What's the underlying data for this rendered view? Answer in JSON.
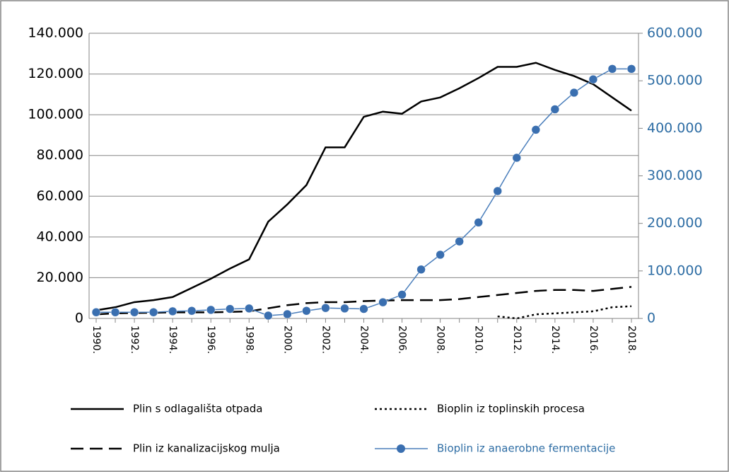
{
  "chart_data": {
    "type": "line",
    "categories": [
      "1990.",
      null,
      "1992.",
      null,
      "1994.",
      null,
      "1996.",
      null,
      "1998.",
      null,
      "2000.",
      null,
      "2002.",
      null,
      "2004.",
      null,
      "2006.",
      null,
      "2008.",
      null,
      "2010.",
      null,
      "2012.",
      null,
      "2014.",
      null,
      "2016.",
      null,
      "2018."
    ],
    "ylim": [
      0,
      140000
    ],
    "yticks": [
      0,
      {
        "value": 20000,
        "label": "20.000"
      },
      {
        "value": 40000,
        "label": "40.000"
      },
      {
        "value": 60000,
        "label": "60.000"
      },
      {
        "value": 80000,
        "label": "80.000"
      },
      {
        "value": 100000,
        "label": "100.000"
      },
      {
        "value": 120000,
        "label": "120.000"
      },
      {
        "value": 140000,
        "label": "140.000"
      }
    ],
    "y2lim": [
      0,
      600000
    ],
    "y2ticks": [
      0,
      {
        "value": 100000,
        "label": "100.000"
      },
      {
        "value": 200000,
        "label": "200.000"
      },
      {
        "value": 300000,
        "label": "300.000"
      },
      {
        "value": 400000,
        "label": "400.000"
      },
      {
        "value": 500000,
        "label": "500.000"
      },
      {
        "value": 600000,
        "label": "600.000"
      }
    ],
    "grid": true,
    "legend": "bottom",
    "series": [
      {
        "name": "Plin s odlagališta otpada",
        "color": "#000000",
        "style": "solid",
        "values": [
          4000,
          5500,
          8000,
          9000,
          10500,
          15000,
          19500,
          24500,
          29000,
          47500,
          56000,
          65500,
          84000,
          84000,
          99000,
          101500,
          100500,
          106500,
          108500,
          113000,
          118000,
          123500,
          123500,
          125500,
          122000,
          119000,
          115000,
          108500,
          102000
        ]
      },
      {
        "name": "Bioplin iz toplinskih procesa",
        "color": "#000000",
        "style": "dotted",
        "values": [
          null,
          null,
          null,
          null,
          null,
          null,
          null,
          null,
          null,
          null,
          null,
          null,
          null,
          null,
          null,
          null,
          null,
          null,
          null,
          null,
          null,
          1000,
          0,
          2000,
          2500,
          3000,
          3500,
          5500,
          6000
        ]
      },
      {
        "name": "Plin iz kanalizacijskog mulja",
        "color": "#000000",
        "style": "dashed",
        "values": [
          2000,
          2500,
          2700,
          2800,
          3000,
          3000,
          3000,
          3200,
          3500,
          5000,
          6500,
          7500,
          8000,
          8000,
          8500,
          8800,
          9000,
          9000,
          9000,
          9500,
          10500,
          11500,
          12500,
          13500,
          14000,
          14000,
          13500,
          14500,
          15500
        ]
      },
      {
        "name": "Bioplin iz anaerobne fermentacije",
        "color": "#4a7ebb",
        "style": "solid",
        "marker": "circle",
        "axis": "y2",
        "values": [
          13000,
          13000,
          13000,
          13000,
          15000,
          16000,
          18000,
          20000,
          21000,
          6000,
          9000,
          16000,
          22000,
          21000,
          20000,
          34000,
          50000,
          103000,
          134000,
          162000,
          202000,
          268000,
          338000,
          397000,
          440000,
          475000,
          503000,
          525000,
          525000
        ]
      }
    ]
  }
}
